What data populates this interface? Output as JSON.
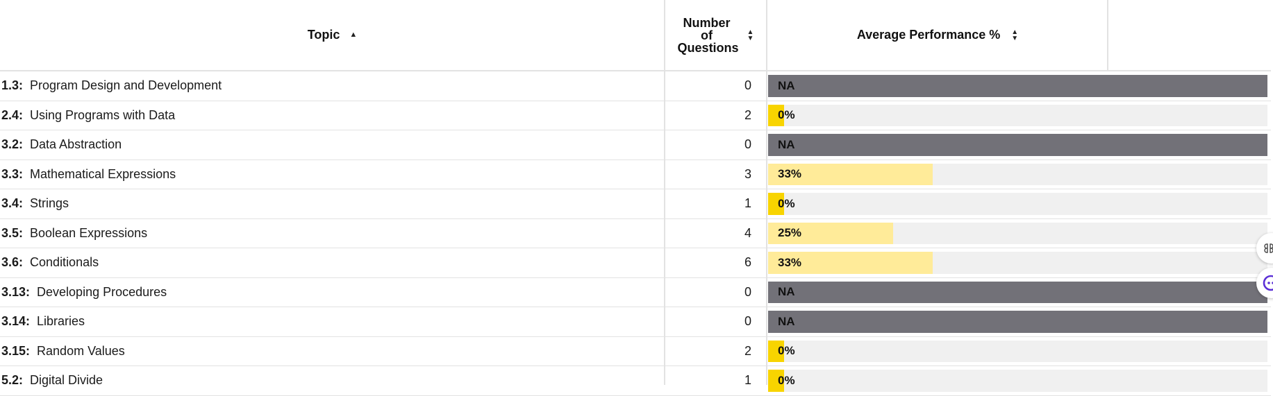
{
  "table": {
    "headers": {
      "topic": "Topic",
      "num_questions": "Number of Questions",
      "avg_performance": "Average Performance %"
    },
    "rows": [
      {
        "code": "1.3:",
        "name": "Program Design and Development",
        "count": "0",
        "perf_label": "NA",
        "perf_value": null
      },
      {
        "code": "2.4:",
        "name": "Using Programs with Data",
        "count": "2",
        "perf_label": "0%",
        "perf_value": 0
      },
      {
        "code": "3.2:",
        "name": "Data Abstraction",
        "count": "0",
        "perf_label": "NA",
        "perf_value": null
      },
      {
        "code": "3.3:",
        "name": "Mathematical Expressions",
        "count": "3",
        "perf_label": "33%",
        "perf_value": 33
      },
      {
        "code": "3.4:",
        "name": "Strings",
        "count": "1",
        "perf_label": "0%",
        "perf_value": 0
      },
      {
        "code": "3.5:",
        "name": "Boolean Expressions",
        "count": "4",
        "perf_label": "25%",
        "perf_value": 25
      },
      {
        "code": "3.6:",
        "name": "Conditionals",
        "count": "6",
        "perf_label": "33%",
        "perf_value": 33
      },
      {
        "code": "3.13:",
        "name": "Developing Procedures",
        "count": "0",
        "perf_label": "NA",
        "perf_value": null
      },
      {
        "code": "3.14:",
        "name": "Libraries",
        "count": "0",
        "perf_label": "NA",
        "perf_value": null
      },
      {
        "code": "3.15:",
        "name": "Random Values",
        "count": "2",
        "perf_label": "0%",
        "perf_value": 0
      },
      {
        "code": "5.2:",
        "name": "Digital Divide",
        "count": "1",
        "perf_label": "0%",
        "perf_value": 0
      }
    ]
  },
  "colors": {
    "na_bar": "#727178",
    "zero_bar": "#f8d400",
    "partial_bar": "#ffeb99",
    "bar_track": "#f0f0f0"
  },
  "icons": {
    "topic_sort": "sort-ascending-icon",
    "column_sort": "sort-both-icon",
    "floating_1": "shortcut-icon",
    "floating_2": "assistant-icon"
  }
}
